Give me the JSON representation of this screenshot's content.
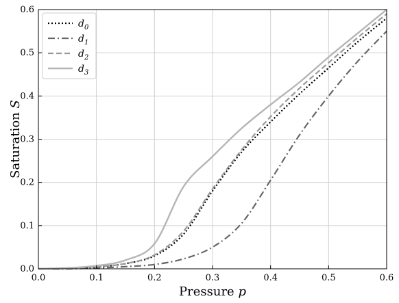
{
  "chart_data": {
    "type": "line",
    "xlabel": "Pressure",
    "xlabel_var": "p",
    "ylabel": "Saturation",
    "ylabel_var": "S",
    "xlim": [
      0.0,
      0.6
    ],
    "ylim": [
      0.0,
      0.6
    ],
    "xticks": [
      "0.0",
      "0.1",
      "0.2",
      "0.3",
      "0.4",
      "0.5",
      "0.6"
    ],
    "yticks": [
      "0.0",
      "0.1",
      "0.2",
      "0.3",
      "0.4",
      "0.5",
      "0.6"
    ],
    "grid": true,
    "legend_position": "top-left",
    "x": [
      0.0,
      0.05,
      0.1,
      0.15,
      0.2,
      0.25,
      0.3,
      0.35,
      0.4,
      0.45,
      0.5,
      0.55,
      0.6
    ],
    "series": [
      {
        "name": "d",
        "sub": "0",
        "color": "#000000",
        "dash": "2,3",
        "width": 2.2,
        "values": [
          0.0,
          0.001,
          0.004,
          0.012,
          0.03,
          0.08,
          0.18,
          0.27,
          0.34,
          0.405,
          0.465,
          0.525,
          0.58
        ]
      },
      {
        "name": "d",
        "sub": "1",
        "color": "#666666",
        "dash": "10,4,2,4",
        "width": 2.2,
        "values": [
          0.0,
          0.0,
          0.002,
          0.005,
          0.01,
          0.023,
          0.05,
          0.105,
          0.205,
          0.31,
          0.4,
          0.48,
          0.55
        ]
      },
      {
        "name": "d",
        "sub": "2",
        "color": "#999999",
        "dash": "8,4",
        "width": 2.2,
        "values": [
          0.0,
          0.001,
          0.005,
          0.012,
          0.032,
          0.087,
          0.185,
          0.275,
          0.352,
          0.418,
          0.477,
          0.535,
          0.59
        ]
      },
      {
        "name": "d",
        "sub": "3",
        "color": "#b5b5b5",
        "dash": "",
        "width": 2.4,
        "values": [
          0.0,
          0.002,
          0.007,
          0.02,
          0.058,
          0.19,
          0.26,
          0.325,
          0.38,
          0.432,
          0.49,
          0.545,
          0.6
        ]
      }
    ]
  }
}
